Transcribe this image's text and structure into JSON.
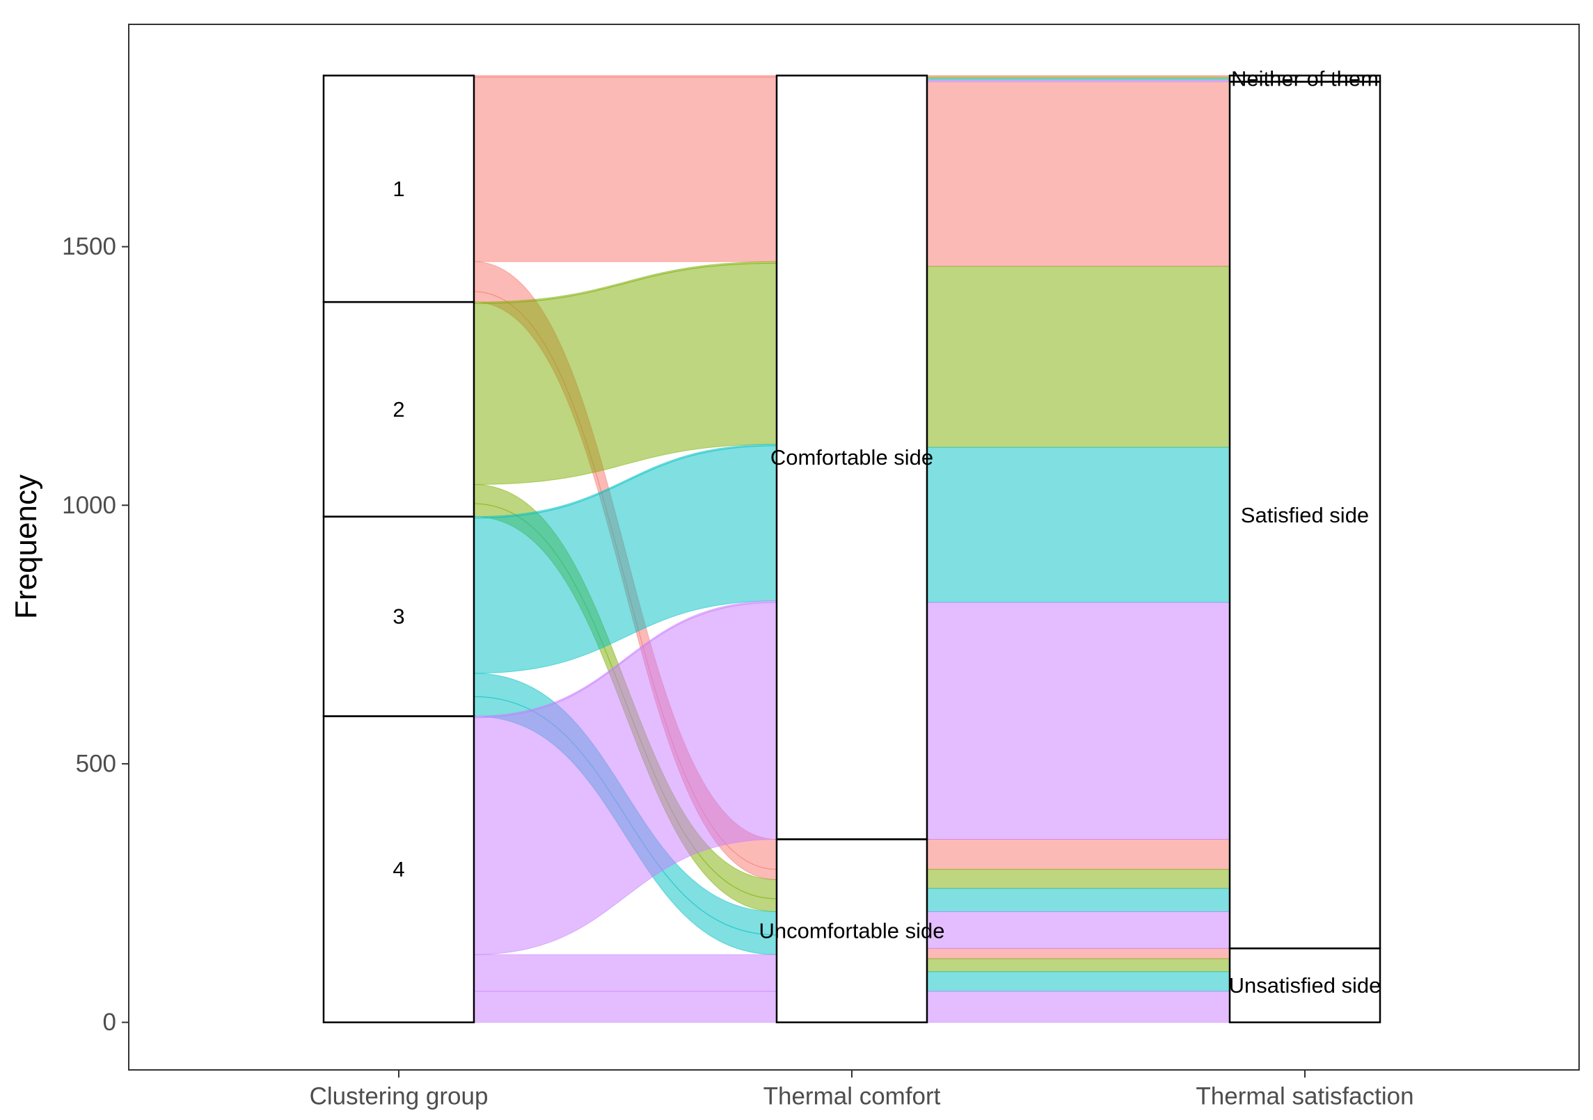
{
  "chart_data": {
    "type": "alluvial",
    "ylabel": "Frequency",
    "xlabel": "",
    "ylim": [
      -92,
      1930
    ],
    "yticks": [
      0,
      500,
      1000,
      1500
    ],
    "axes": [
      {
        "name": "Clustering group",
        "strata": [
          "1",
          "2",
          "3",
          "4"
        ]
      },
      {
        "name": "Thermal comfort",
        "strata": [
          "Comfortable side",
          "Uncomfortable side"
        ]
      },
      {
        "name": "Thermal satisfaction",
        "strata": [
          "Neither of them",
          "Satisfied side",
          "Unsatisfied side"
        ]
      }
    ],
    "series": [
      {
        "name": "1",
        "color": "#F8766D"
      },
      {
        "name": "2",
        "color": "#7CAE00"
      },
      {
        "name": "3",
        "color": "#00BFC4"
      },
      {
        "name": "4",
        "color": "#C77CFF"
      }
    ],
    "flows": [
      {
        "group": "1",
        "comfort": "Comfortable side",
        "satisfaction": "Neither of them",
        "count": 3
      },
      {
        "group": "1",
        "comfort": "Comfortable side",
        "satisfaction": "Satisfied side",
        "count": 357
      },
      {
        "group": "1",
        "comfort": "Uncomfortable side",
        "satisfaction": "Satisfied side",
        "count": 58
      },
      {
        "group": "1",
        "comfort": "Uncomfortable side",
        "satisfaction": "Unsatisfied side",
        "count": 20
      },
      {
        "group": "2",
        "comfort": "Comfortable side",
        "satisfaction": "Neither of them",
        "count": 3
      },
      {
        "group": "2",
        "comfort": "Comfortable side",
        "satisfaction": "Satisfied side",
        "count": 350
      },
      {
        "group": "2",
        "comfort": "Uncomfortable side",
        "satisfaction": "Satisfied side",
        "count": 37
      },
      {
        "group": "2",
        "comfort": "Uncomfortable side",
        "satisfaction": "Unsatisfied side",
        "count": 25
      },
      {
        "group": "3",
        "comfort": "Comfortable side",
        "satisfaction": "Neither of them",
        "count": 3
      },
      {
        "group": "3",
        "comfort": "Comfortable side",
        "satisfaction": "Satisfied side",
        "count": 300
      },
      {
        "group": "3",
        "comfort": "Uncomfortable side",
        "satisfaction": "Satisfied side",
        "count": 45
      },
      {
        "group": "3",
        "comfort": "Uncomfortable side",
        "satisfaction": "Unsatisfied side",
        "count": 38
      },
      {
        "group": "4",
        "comfort": "Comfortable side",
        "satisfaction": "Neither of them",
        "count": 3
      },
      {
        "group": "4",
        "comfort": "Comfortable side",
        "satisfaction": "Satisfied side",
        "count": 458
      },
      {
        "group": "4",
        "comfort": "Uncomfortable side",
        "satisfaction": "Satisfied side",
        "count": 71
      },
      {
        "group": "4",
        "comfort": "Uncomfortable side",
        "satisfaction": "Unsatisfied side",
        "count": 60
      }
    ]
  }
}
